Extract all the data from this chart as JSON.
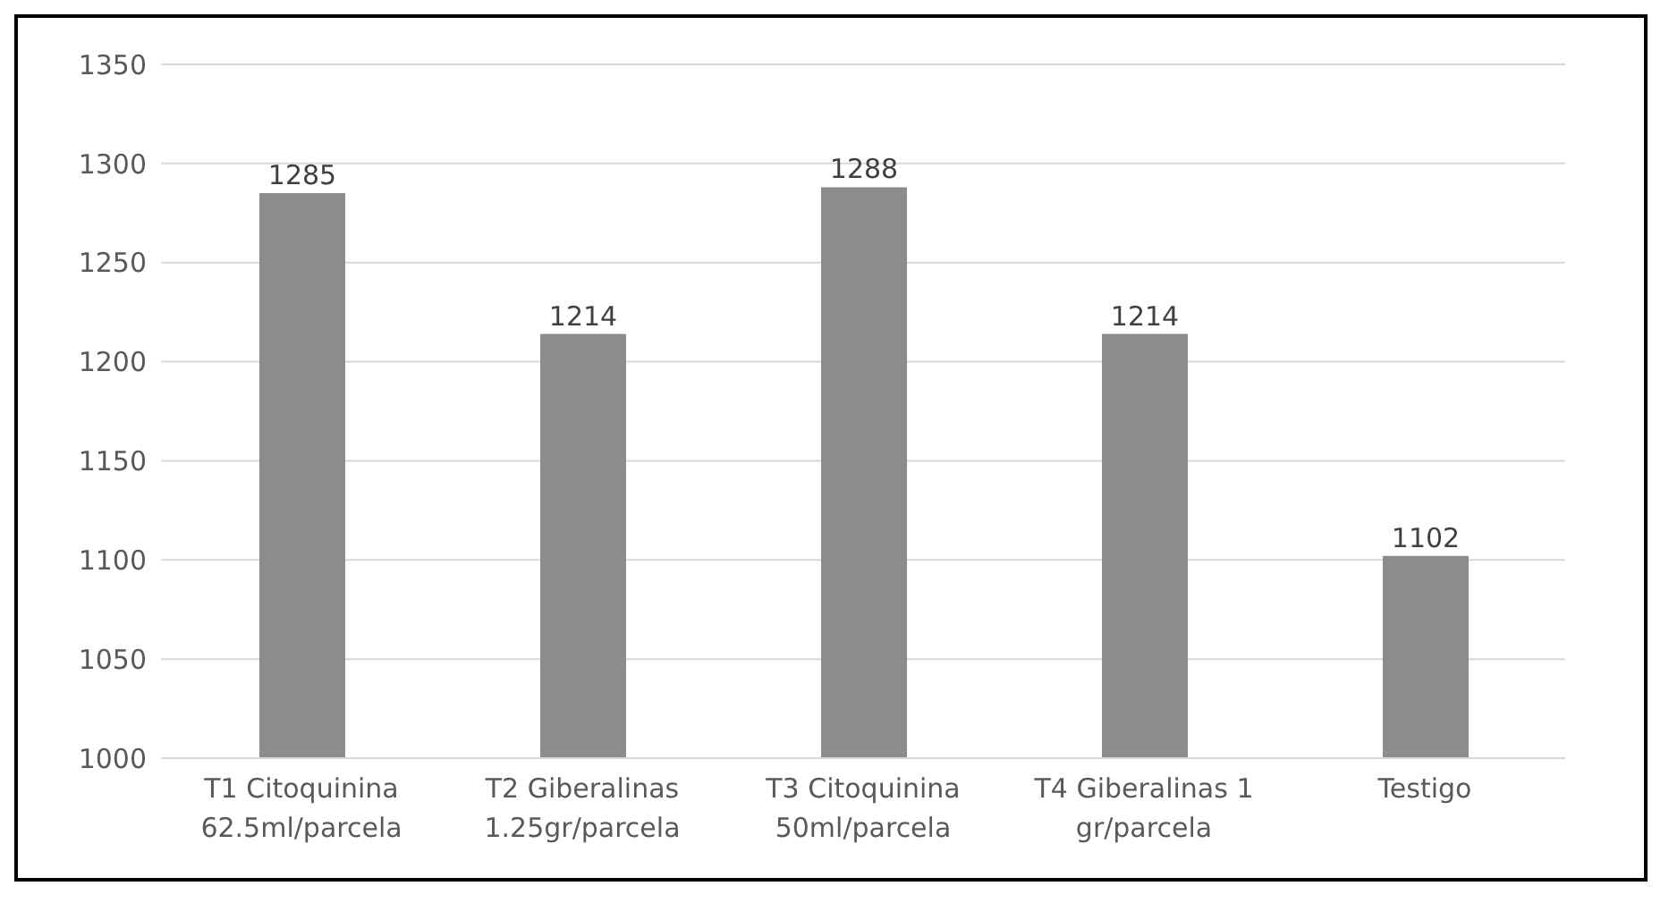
{
  "chart_data": {
    "type": "bar",
    "categories": [
      "T1 Citoquinina 62.5ml/parcela",
      "T2 Giberalinas 1.25gr/parcela",
      "T3 Citoquinina 50ml/parcela",
      "T4 Giberalinas 1 gr/parcela",
      "Testigo"
    ],
    "values": [
      1285,
      1214,
      1288,
      1214,
      1102
    ],
    "color": "#8c8c8c",
    "ylim": [
      1000,
      1350
    ],
    "yticks": [
      1000,
      1050,
      1100,
      1150,
      1200,
      1250,
      1300,
      1350
    ],
    "grid": "y",
    "data_labels": true
  }
}
